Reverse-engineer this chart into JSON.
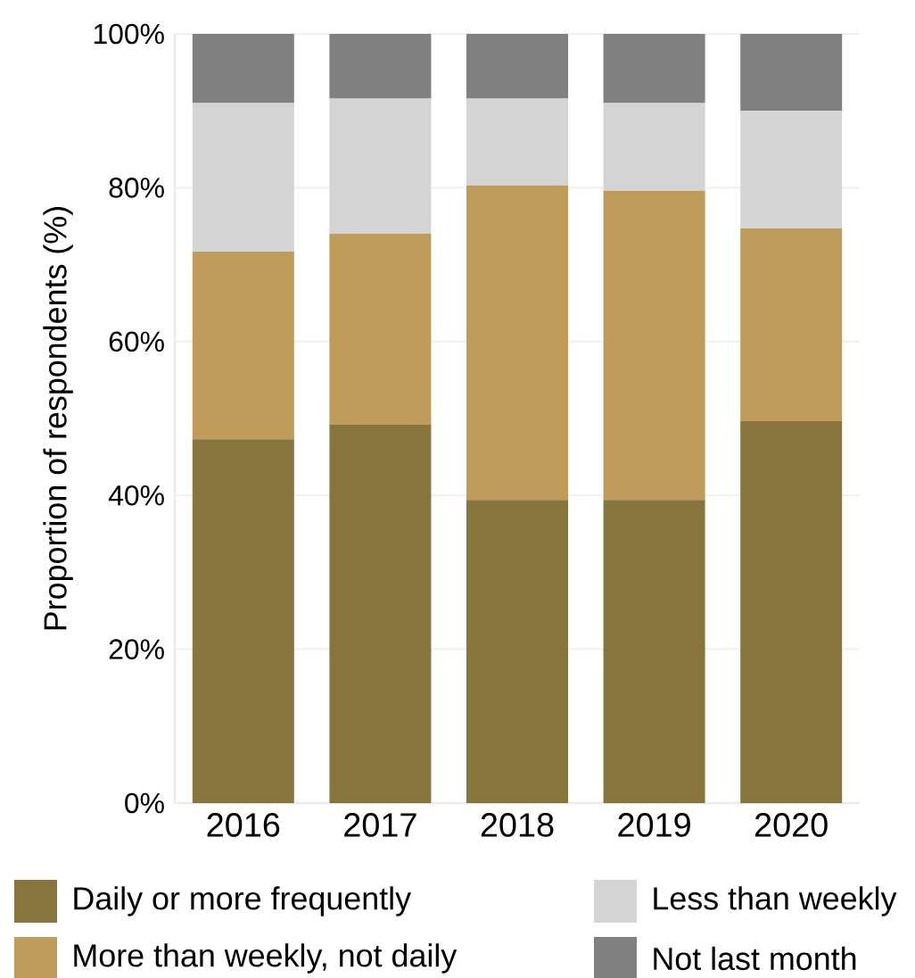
{
  "chart_data": {
    "type": "bar",
    "stacked": true,
    "ylabel": "Proportion of respondents (%)",
    "categories": [
      "2016",
      "2017",
      "2018",
      "2019",
      "2020"
    ],
    "series": [
      {
        "name": "Daily or more frequently",
        "color": "#88753c",
        "values": [
          47.3,
          49.2,
          39.4,
          39.4,
          49.7
        ]
      },
      {
        "name": "More than weekly, not daily",
        "color": "#bf9c5a",
        "values": [
          24.4,
          24.8,
          40.9,
          40.2,
          25.0
        ]
      },
      {
        "name": "Less than weekly",
        "color": "#d4d4d4",
        "values": [
          19.3,
          17.6,
          11.3,
          11.4,
          15.3
        ]
      },
      {
        "name": "Not last month",
        "color": "#808080",
        "values": [
          9.0,
          8.4,
          8.4,
          9.0,
          10.0
        ]
      }
    ],
    "ylim": [
      0,
      100
    ],
    "yticks": [
      {
        "value": 0,
        "label": "0%"
      },
      {
        "value": 20,
        "label": "20%"
      },
      {
        "value": 40,
        "label": "40%"
      },
      {
        "value": 60,
        "label": "60%"
      },
      {
        "value": 80,
        "label": "80%"
      },
      {
        "value": 100,
        "label": "100%"
      }
    ],
    "grid": "y",
    "legend": "bottom"
  }
}
